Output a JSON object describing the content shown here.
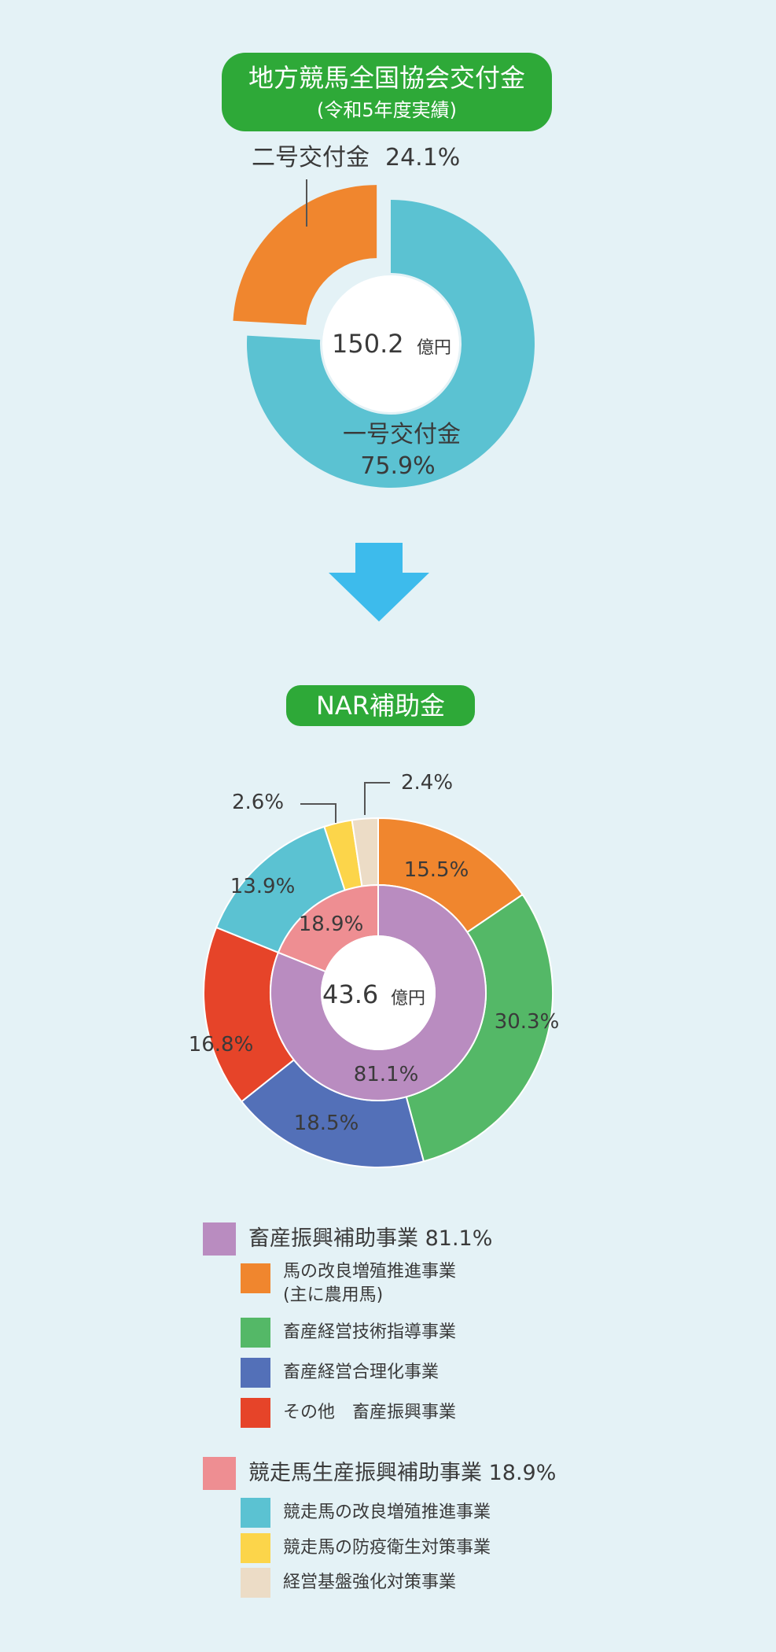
{
  "chart_data": [
    {
      "type": "pie",
      "title": "地方競馬全国協会交付金",
      "subtitle": "(令和5年度実績)",
      "center_value": "150.2",
      "center_unit": "億円",
      "slices": [
        {
          "label": "一号交付金",
          "pct_label": "75.9%",
          "value": 75.9,
          "color": "#5bc2d2"
        },
        {
          "label": "二号交付金",
          "pct_label": "24.1%",
          "value": 24.1,
          "color": "#f0862e"
        }
      ]
    },
    {
      "type": "pie",
      "title": "NAR補助金",
      "center_value": "43.6",
      "center_unit": "億円",
      "inner_ring": [
        {
          "label": "畜産振興補助事業",
          "pct_label": "81.1%",
          "value": 81.1,
          "color": "#b98cc0"
        },
        {
          "label": "競走馬生産振興補助事業",
          "pct_label": "18.9%",
          "value": 18.9,
          "color": "#ee8e92"
        }
      ],
      "outer_ring": [
        {
          "label": "馬の改良増殖推進事業",
          "pct_label": "15.5%",
          "value": 15.5,
          "color": "#f0862e"
        },
        {
          "label": "畜産経営技術指導事業",
          "pct_label": "30.3%",
          "value": 30.3,
          "color": "#54b867"
        },
        {
          "label": "畜産経営合理化事業",
          "pct_label": "18.5%",
          "value": 18.5,
          "color": "#5370b8"
        },
        {
          "label": "その他 畜産振興事業",
          "pct_label": "16.8%",
          "value": 16.8,
          "color": "#e64429"
        },
        {
          "label": "競走馬の改良増殖推進事業",
          "pct_label": "13.9%",
          "value": 13.9,
          "color": "#5bc2d2"
        },
        {
          "label": "競走馬の防疫衛生対策事業",
          "pct_label": "2.6%",
          "value": 2.6,
          "color": "#fcd54a"
        },
        {
          "label": "経営基盤強化対策事業",
          "pct_label": "2.4%",
          "value": 2.4,
          "color": "#ecdcc6"
        }
      ]
    }
  ],
  "colors": {
    "pill": "#2ea938",
    "arrow": "#3dbbec",
    "background": "#e4f2f6"
  },
  "legend": {
    "groups": [
      {
        "title": "畜産振興補助事業 81.1%",
        "color": "#b98cc0",
        "items": [
          {
            "label": "馬の改良増殖推進事業",
            "note": "(主に農用馬)",
            "color": "#f0862e"
          },
          {
            "label": "畜産経営技術指導事業",
            "color": "#54b867"
          },
          {
            "label": "畜産経営合理化事業",
            "color": "#5370b8"
          },
          {
            "label": "その他　畜産振興事業",
            "color": "#e64429"
          }
        ]
      },
      {
        "title": "競走馬生産振興補助事業 18.9%",
        "color": "#ee8e92",
        "items": [
          {
            "label": "競走馬の改良増殖推進事業",
            "color": "#5bc2d2"
          },
          {
            "label": "競走馬の防疫衛生対策事業",
            "color": "#fcd54a"
          },
          {
            "label": "経営基盤強化対策事業",
            "color": "#ecdcc6"
          }
        ]
      }
    ]
  }
}
